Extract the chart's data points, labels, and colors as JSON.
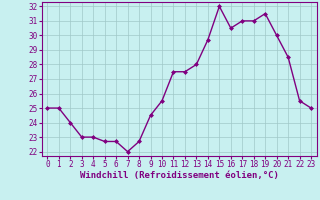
{
  "x": [
    0,
    1,
    2,
    3,
    4,
    5,
    6,
    7,
    8,
    9,
    10,
    11,
    12,
    13,
    14,
    15,
    16,
    17,
    18,
    19,
    20,
    21,
    22,
    23
  ],
  "y": [
    25,
    25,
    24,
    23,
    23,
    22.7,
    22.7,
    22,
    22.7,
    24.5,
    25.5,
    27.5,
    27.5,
    28,
    29.7,
    32,
    30.5,
    31,
    31,
    31.5,
    30,
    28.5,
    25.5,
    25
  ],
  "line_color": "#800080",
  "marker": "D",
  "marker_size": 2.0,
  "bg_color": "#c8f0f0",
  "grid_color": "#a0c8c8",
  "xlabel": "Windchill (Refroidissement éolien,°C)",
  "tick_color": "#800080",
  "ylim": [
    22,
    32
  ],
  "yticks": [
    22,
    23,
    24,
    25,
    26,
    27,
    28,
    29,
    30,
    31,
    32
  ],
  "xticks": [
    0,
    1,
    2,
    3,
    4,
    5,
    6,
    7,
    8,
    9,
    10,
    11,
    12,
    13,
    14,
    15,
    16,
    17,
    18,
    19,
    20,
    21,
    22,
    23
  ],
  "line_width": 1.0,
  "axis_color": "#800080",
  "font_size": 5.5,
  "xlabel_font_size": 6.5
}
